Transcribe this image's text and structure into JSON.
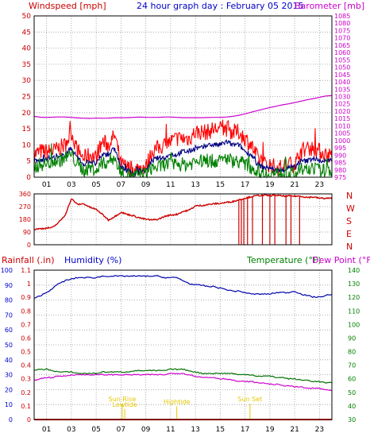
{
  "colors": {
    "wind": "#ff0000",
    "avg_wind": "#000080",
    "gust": "#008000",
    "baro": "#cc00cc",
    "direction": "#cc0000",
    "rain": "#ff0000",
    "humidity": "#0000aa",
    "temperature": "#007000",
    "dewpoint": "#cc00cc",
    "sun": "#e6c800",
    "axis_rain": "#cc0000",
    "axis_hum": "#0000cc",
    "axis_temp": "#008000",
    "axis_dew": "#cc00cc"
  },
  "chart_data": [
    {
      "id": "wind-baro",
      "type": "line",
      "title": "24 hour graph day : February 05 2015",
      "left_label": "Windspeed [mph]",
      "right_label": "Barometer [mb]",
      "x_ticks": [
        "01",
        "03",
        "05",
        "07",
        "09",
        "11",
        "13",
        "15",
        "17",
        "19",
        "21",
        "23"
      ],
      "x_tick_hours": [
        1,
        3,
        5,
        7,
        9,
        11,
        13,
        15,
        17,
        19,
        21,
        23
      ],
      "xlim": [
        0,
        24
      ],
      "ylim_left": [
        0,
        50
      ],
      "ylim_right": [
        975,
        1085
      ],
      "left_ticks": [
        "0",
        "5",
        "10",
        "15",
        "20",
        "25",
        "30",
        "35",
        "40",
        "45",
        "50"
      ],
      "right_ticks": [
        "975",
        "980",
        "985",
        "990",
        "995",
        "1000",
        "1005",
        "1010",
        "1015",
        "1020",
        "1025",
        "1030",
        "1035",
        "1040",
        "1045",
        "1050",
        "1055",
        "1060",
        "1065",
        "1070",
        "1075",
        "1080",
        "1085"
      ],
      "x": [
        0,
        0.5,
        1,
        1.5,
        2,
        2.5,
        3,
        3.5,
        4,
        4.5,
        5,
        5.5,
        6,
        6.5,
        7,
        7.5,
        8,
        8.5,
        9,
        9.5,
        10,
        10.5,
        11,
        11.5,
        12,
        12.5,
        13,
        13.5,
        14,
        14.5,
        15,
        15.5,
        16,
        16.5,
        17,
        17.5,
        18,
        18.5,
        19,
        19.5,
        20,
        20.5,
        21,
        21.5,
        22,
        22.5,
        23,
        23.5,
        24
      ],
      "series": [
        {
          "key": "wind",
          "axis": "left",
          "color_key": "wind",
          "values": [
            7,
            8,
            8,
            8,
            9,
            10,
            14,
            8,
            6,
            7,
            6,
            11,
            10,
            13,
            4,
            3,
            2,
            3,
            3,
            8,
            9,
            10,
            11,
            12,
            12,
            12,
            14,
            14,
            14,
            15,
            15,
            15,
            14,
            14,
            12,
            10,
            6,
            4,
            4,
            3,
            3,
            4,
            4,
            8,
            9,
            9,
            8,
            7,
            7
          ]
        },
        {
          "key": "avg_wind",
          "axis": "left",
          "color_key": "avg_wind",
          "values": [
            5,
            5,
            6,
            6,
            6,
            7,
            9,
            6,
            4,
            5,
            4,
            7,
            7,
            9,
            3,
            2,
            1,
            2,
            2,
            5,
            6,
            6,
            7,
            7,
            8,
            8,
            9,
            9,
            10,
            10,
            10,
            11,
            10,
            10,
            8,
            7,
            4,
            3,
            3,
            2,
            2,
            3,
            3,
            5,
            5,
            6,
            5,
            5,
            5
          ]
        },
        {
          "key": "gust",
          "axis": "left",
          "color_key": "gust",
          "values": [
            3,
            4,
            4,
            5,
            5,
            6,
            7,
            4,
            2,
            3,
            2,
            4,
            5,
            6,
            1,
            1,
            0,
            1,
            1,
            3,
            3,
            4,
            4,
            4,
            4,
            4,
            5,
            5,
            5,
            5,
            5,
            6,
            5,
            5,
            4,
            3,
            2,
            1,
            1,
            1,
            1,
            1,
            1,
            2,
            2,
            3,
            2,
            2,
            2
          ]
        },
        {
          "key": "baro",
          "axis": "right",
          "color_key": "baro",
          "values": [
            1016.5,
            1015.9,
            1015.8,
            1015.9,
            1016.1,
            1016.0,
            1015.8,
            1015.4,
            1015.2,
            1015.1,
            1015.3,
            1015.2,
            1015.3,
            1015.6,
            1015.6,
            1015.6,
            1015.8,
            1016.0,
            1015.8,
            1015.8,
            1015.8,
            1016.0,
            1016.0,
            1015.8,
            1015.6,
            1015.6,
            1015.6,
            1015.6,
            1015.7,
            1015.8,
            1015.8,
            1016.0,
            1016.5,
            1017.2,
            1018.2,
            1019.3,
            1020.4,
            1021.5,
            1022.5,
            1023.4,
            1024.3,
            1025.0,
            1025.9,
            1026.8,
            1027.8,
            1028.6,
            1029.5,
            1030.4,
            1030.7
          ]
        }
      ]
    },
    {
      "id": "wind-direction",
      "type": "line",
      "xlim": [
        0,
        24
      ],
      "ylim": [
        0,
        360
      ],
      "left_ticks": [
        "0",
        "90",
        "180",
        "270",
        "360"
      ],
      "right_ticks": [
        "N",
        "W",
        "S",
        "E",
        "N"
      ],
      "x": [
        0,
        0.5,
        1,
        1.5,
        2,
        2.5,
        3,
        3.5,
        4,
        4.5,
        5,
        5.5,
        6,
        6.5,
        7,
        7.5,
        8,
        8.5,
        9,
        9.5,
        10,
        10.5,
        11,
        11.5,
        12,
        12.5,
        13,
        13.5,
        14,
        14.5,
        15,
        15.5,
        16,
        16.5,
        17,
        17.5,
        18,
        18.5,
        19,
        19.5,
        20,
        20.5,
        21,
        21.5,
        22,
        22.5,
        23,
        23.5,
        24
      ],
      "values": [
        110,
        113,
        118,
        122,
        160,
        210,
        325,
        285,
        290,
        265,
        250,
        215,
        175,
        200,
        230,
        215,
        205,
        190,
        180,
        175,
        180,
        200,
        210,
        215,
        235,
        245,
        275,
        278,
        284,
        290,
        292,
        300,
        305,
        318,
        330,
        340,
        348,
        350,
        348,
        350,
        345,
        345,
        344,
        344,
        335,
        338,
        330,
        328,
        330
      ],
      "drops_to_zero_at": [
        16.5,
        16.7,
        16.9,
        17.2,
        17.6,
        18.4,
        19.0,
        19.4,
        20.3,
        20.7,
        21.4
      ]
    },
    {
      "id": "rain-hum-temp",
      "type": "line",
      "left_label_rain": "Rainfall (.in)",
      "left_label_hum": "Humidity (%)",
      "right_label_temp": "Temperature (°F)",
      "right_label_dew": "Dew Point (°F)",
      "xlim": [
        0,
        24
      ],
      "ylim_hum": [
        0,
        100
      ],
      "ylim_rain": [
        0,
        1.1
      ],
      "ylim_temp": [
        30,
        140
      ],
      "hum_ticks": [
        "0",
        "10",
        "20",
        "30",
        "40",
        "50",
        "60",
        "70",
        "80",
        "90",
        "100"
      ],
      "rain_ticks": [
        "0",
        "0.1",
        "0.2",
        "0.3",
        "0.4",
        "0.5",
        "0.6",
        "0.7",
        "0.8",
        "0.9",
        "1",
        "1.1"
      ],
      "temp_ticks": [
        "30",
        "40",
        "50",
        "60",
        "70",
        "80",
        "90",
        "100",
        "110",
        "120",
        "130",
        "140"
      ],
      "x": [
        0,
        0.5,
        1,
        1.5,
        2,
        2.5,
        3,
        3.5,
        4,
        4.5,
        5,
        5.5,
        6,
        6.5,
        7,
        7.5,
        8,
        8.5,
        9,
        9.5,
        10,
        10.5,
        11,
        11.5,
        12,
        12.5,
        13,
        13.5,
        14,
        14.5,
        15,
        15.5,
        16,
        16.5,
        17,
        17.5,
        18,
        18.5,
        19,
        19.5,
        20,
        20.5,
        21,
        21.5,
        22,
        22.5,
        23,
        23.5,
        24
      ],
      "series": [
        {
          "key": "humidity",
          "axis": "hum",
          "color_key": "humidity",
          "values": [
            81,
            83,
            85,
            88,
            91,
            93,
            94,
            95,
            95,
            95,
            95,
            96,
            96,
            96,
            96,
            96,
            96,
            96,
            96,
            96,
            96,
            95,
            95,
            95,
            93,
            91,
            90,
            90,
            89,
            89,
            88,
            87,
            86,
            86,
            85,
            84,
            84,
            84,
            84,
            85,
            85,
            85,
            86,
            84,
            83,
            82,
            82,
            83,
            84
          ]
        },
        {
          "key": "temperature",
          "axis": "temp",
          "color_key": "temperature",
          "values": [
            66,
            67,
            67,
            66,
            65,
            65,
            65,
            64,
            64,
            64,
            64,
            65,
            65,
            65,
            65,
            65,
            66,
            66,
            66,
            66,
            66,
            66,
            67,
            67,
            67,
            66,
            65,
            64,
            64,
            64,
            64,
            64,
            64,
            63,
            63,
            63,
            62,
            62,
            62,
            61,
            61,
            60,
            60,
            59,
            59,
            58,
            58,
            57,
            57
          ]
        },
        {
          "key": "dewpoint",
          "axis": "temp",
          "color_key": "dewpoint",
          "values": [
            59,
            60,
            61,
            61,
            62,
            62,
            63,
            63,
            63,
            63,
            63,
            63,
            63,
            63,
            63,
            63,
            63,
            63,
            63,
            63,
            63,
            63,
            64,
            64,
            64,
            63,
            62,
            61,
            61,
            61,
            60,
            60,
            59,
            58,
            58,
            58,
            57,
            57,
            56,
            56,
            55,
            55,
            54,
            54,
            53,
            53,
            53,
            52,
            51
          ]
        },
        {
          "key": "rain",
          "axis": "rain",
          "color_key": "rain",
          "values": [
            0,
            0,
            0,
            0,
            0,
            0,
            0,
            0,
            0,
            0,
            0,
            0,
            0,
            0,
            0,
            0,
            0,
            0,
            0,
            0,
            0,
            0,
            0,
            0,
            0,
            0,
            0,
            0,
            0,
            0,
            0,
            0,
            0,
            0,
            0,
            0,
            0,
            0,
            0,
            0,
            0,
            0,
            0,
            0,
            0,
            0,
            0,
            0,
            0
          ]
        }
      ],
      "annotations": [
        {
          "text": "Sun Rise",
          "hour": 7.1,
          "row": 1
        },
        {
          "text": "Lowtide",
          "hour": 7.3,
          "row": 2
        },
        {
          "text": "Hightide",
          "hour": 11.5,
          "row": 1.5
        },
        {
          "text": "Sun Set",
          "hour": 17.4,
          "row": 1
        }
      ]
    }
  ]
}
